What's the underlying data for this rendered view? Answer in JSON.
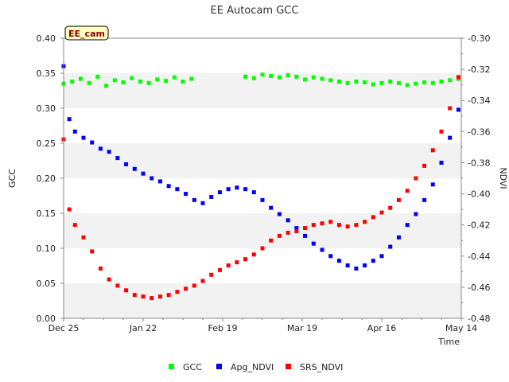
{
  "chart_data": {
    "type": "scatter",
    "title": "EE Autocam GCC",
    "badge": "EE_cam",
    "xlabel": "Time",
    "ylabel": "GCC",
    "y2label": "NDVI",
    "x_ticks": [
      "Dec 25",
      "Jan 22",
      "Feb 19",
      "Mar 19",
      "Apr 16",
      "May 14"
    ],
    "ylim": [
      0.0,
      0.4
    ],
    "y_ticks": [
      "0.00",
      "0.05",
      "0.10",
      "0.15",
      "0.20",
      "0.25",
      "0.30",
      "0.35",
      "0.40"
    ],
    "y2lim": [
      -0.48,
      -0.3
    ],
    "y2_ticks": [
      "-0.48",
      "-0.46",
      "-0.44",
      "-0.42",
      "-0.40",
      "-0.38",
      "-0.36",
      "-0.34",
      "-0.32",
      "-0.30"
    ],
    "grid": "alternating horizontal bands",
    "legend_position": "bottom",
    "colors": {
      "GCC": "#00ff00",
      "Apg_NDVI": "#0000ff",
      "SRS_NDVI": "#ff0000",
      "band": "#f2f2f2",
      "badge_bg": "#ffffc0"
    },
    "series": [
      {
        "name": "GCC",
        "axis": "left",
        "points": [
          [
            0,
            0.335
          ],
          [
            3,
            0.338
          ],
          [
            6,
            0.342
          ],
          [
            9,
            0.336
          ],
          [
            12,
            0.345
          ],
          [
            15,
            0.332
          ],
          [
            18,
            0.34
          ],
          [
            21,
            0.337
          ],
          [
            24,
            0.343
          ],
          [
            27,
            0.338
          ],
          [
            30,
            0.336
          ],
          [
            33,
            0.341
          ],
          [
            36,
            0.339
          ],
          [
            39,
            0.344
          ],
          [
            42,
            0.338
          ],
          [
            45,
            0.342
          ],
          [
            64,
            0.345
          ],
          [
            67,
            0.343
          ],
          [
            70,
            0.348
          ],
          [
            73,
            0.346
          ],
          [
            76,
            0.344
          ],
          [
            79,
            0.347
          ],
          [
            82,
            0.345
          ],
          [
            85,
            0.341
          ],
          [
            88,
            0.344
          ],
          [
            91,
            0.342
          ],
          [
            94,
            0.34
          ],
          [
            97,
            0.338
          ],
          [
            100,
            0.336
          ],
          [
            103,
            0.338
          ],
          [
            106,
            0.337
          ],
          [
            109,
            0.334
          ],
          [
            112,
            0.336
          ],
          [
            115,
            0.338
          ],
          [
            118,
            0.336
          ],
          [
            121,
            0.333
          ],
          [
            124,
            0.335
          ],
          [
            127,
            0.337
          ],
          [
            130,
            0.336
          ],
          [
            133,
            0.338
          ],
          [
            136,
            0.34
          ],
          [
            139,
            0.342
          ]
        ]
      },
      {
        "name": "Apg_NDVI",
        "axis": "right",
        "points": [
          [
            0,
            -0.318
          ],
          [
            2,
            -0.352
          ],
          [
            4,
            -0.36
          ],
          [
            7,
            -0.364
          ],
          [
            10,
            -0.367
          ],
          [
            13,
            -0.371
          ],
          [
            16,
            -0.373
          ],
          [
            19,
            -0.377
          ],
          [
            22,
            -0.381
          ],
          [
            25,
            -0.384
          ],
          [
            28,
            -0.387
          ],
          [
            31,
            -0.39
          ],
          [
            34,
            -0.392
          ],
          [
            37,
            -0.395
          ],
          [
            40,
            -0.397
          ],
          [
            43,
            -0.4
          ],
          [
            46,
            -0.404
          ],
          [
            49,
            -0.406
          ],
          [
            52,
            -0.402
          ],
          [
            55,
            -0.399
          ],
          [
            58,
            -0.397
          ],
          [
            61,
            -0.396
          ],
          [
            64,
            -0.397
          ],
          [
            67,
            -0.399
          ],
          [
            70,
            -0.404
          ],
          [
            73,
            -0.409
          ],
          [
            76,
            -0.413
          ],
          [
            79,
            -0.417
          ],
          [
            82,
            -0.422
          ],
          [
            85,
            -0.427
          ],
          [
            88,
            -0.432
          ],
          [
            91,
            -0.436
          ],
          [
            94,
            -0.44
          ],
          [
            97,
            -0.443
          ],
          [
            100,
            -0.446
          ],
          [
            103,
            -0.448
          ],
          [
            106,
            -0.446
          ],
          [
            109,
            -0.443
          ],
          [
            112,
            -0.44
          ],
          [
            115,
            -0.434
          ],
          [
            118,
            -0.428
          ],
          [
            121,
            -0.42
          ],
          [
            124,
            -0.413
          ],
          [
            127,
            -0.404
          ],
          [
            130,
            -0.394
          ],
          [
            133,
            -0.38
          ],
          [
            136,
            -0.364
          ],
          [
            139,
            -0.346
          ]
        ]
      },
      {
        "name": "SRS_NDVI",
        "axis": "right",
        "points": [
          [
            0,
            -0.365
          ],
          [
            2,
            -0.41
          ],
          [
            4,
            -0.42
          ],
          [
            7,
            -0.428
          ],
          [
            10,
            -0.437
          ],
          [
            13,
            -0.448
          ],
          [
            16,
            -0.455
          ],
          [
            19,
            -0.459
          ],
          [
            22,
            -0.462
          ],
          [
            25,
            -0.465
          ],
          [
            28,
            -0.466
          ],
          [
            31,
            -0.467
          ],
          [
            34,
            -0.466
          ],
          [
            37,
            -0.465
          ],
          [
            40,
            -0.463
          ],
          [
            43,
            -0.461
          ],
          [
            46,
            -0.459
          ],
          [
            49,
            -0.456
          ],
          [
            52,
            -0.452
          ],
          [
            55,
            -0.449
          ],
          [
            58,
            -0.446
          ],
          [
            61,
            -0.444
          ],
          [
            64,
            -0.442
          ],
          [
            67,
            -0.439
          ],
          [
            70,
            -0.435
          ],
          [
            73,
            -0.43
          ],
          [
            76,
            -0.427
          ],
          [
            79,
            -0.425
          ],
          [
            82,
            -0.424
          ],
          [
            85,
            -0.422
          ],
          [
            88,
            -0.42
          ],
          [
            91,
            -0.419
          ],
          [
            94,
            -0.418
          ],
          [
            97,
            -0.42
          ],
          [
            100,
            -0.421
          ],
          [
            103,
            -0.42
          ],
          [
            106,
            -0.418
          ],
          [
            109,
            -0.415
          ],
          [
            112,
            -0.412
          ],
          [
            115,
            -0.409
          ],
          [
            118,
            -0.404
          ],
          [
            121,
            -0.398
          ],
          [
            124,
            -0.39
          ],
          [
            127,
            -0.382
          ],
          [
            130,
            -0.372
          ],
          [
            133,
            -0.36
          ],
          [
            136,
            -0.345
          ],
          [
            139,
            -0.325
          ]
        ]
      }
    ]
  }
}
